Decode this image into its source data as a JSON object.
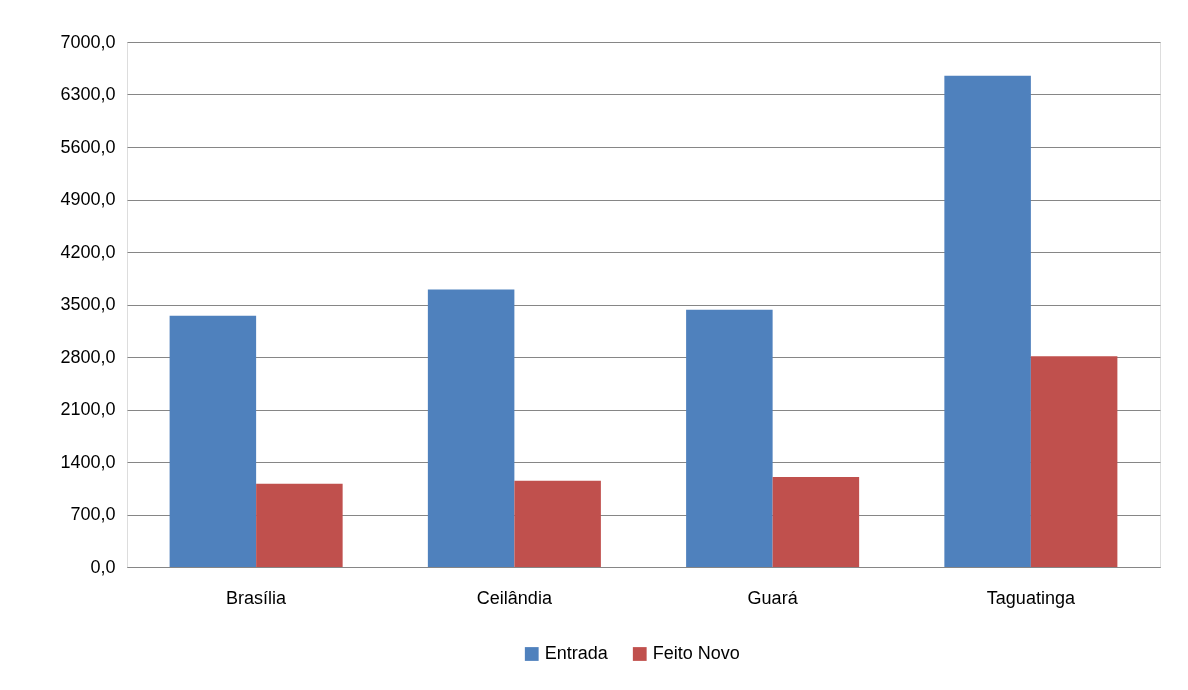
{
  "chart_data": {
    "type": "bar",
    "categories": [
      "Brasília",
      "Ceilândia",
      "Guará",
      "Taguatinga"
    ],
    "series": [
      {
        "name": "Entrada",
        "color": "#4f81bd",
        "values": [
          3350,
          3700,
          3430,
          6550
        ]
      },
      {
        "name": "Feito Novo",
        "color": "#c0504d",
        "values": [
          1110,
          1150,
          1200,
          2810
        ]
      }
    ],
    "ylim": [
      0,
      7000
    ],
    "yticks": [
      {
        "value": 0,
        "label": "0,0"
      },
      {
        "value": 700,
        "label": "700,0"
      },
      {
        "value": 1400,
        "label": "1400,0"
      },
      {
        "value": 2100,
        "label": "2100,0"
      },
      {
        "value": 2800,
        "label": "2800,0"
      },
      {
        "value": 3500,
        "label": "3500,0"
      },
      {
        "value": 4200,
        "label": "4200,0"
      },
      {
        "value": 4900,
        "label": "4900,0"
      },
      {
        "value": 5600,
        "label": "5600,0"
      },
      {
        "value": 6300,
        "label": "6300,0"
      },
      {
        "value": 7000,
        "label": "7000,0"
      }
    ],
    "grid": "y",
    "legend": "bottom"
  }
}
